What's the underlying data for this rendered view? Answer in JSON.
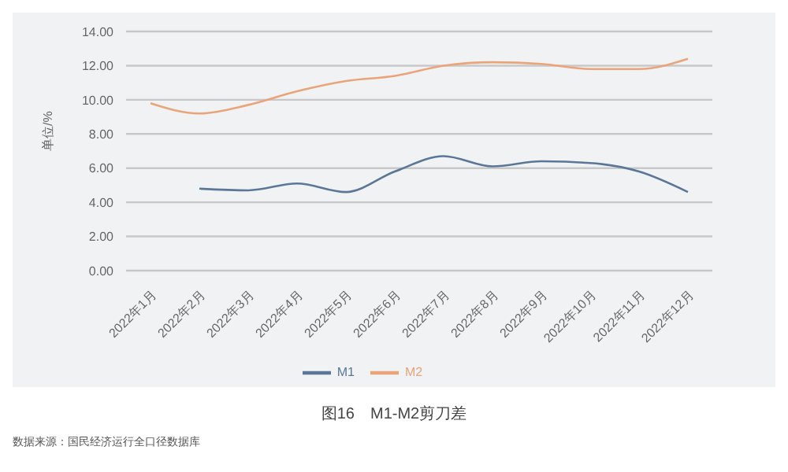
{
  "chart_data": {
    "type": "line",
    "title": "图16　M1-M2剪刀差",
    "ylabel": "单位/%",
    "categories": [
      "2022年1月",
      "2022年2月",
      "2022年3月",
      "2022年4月",
      "2022年5月",
      "2022年6月",
      "2022年7月",
      "2022年8月",
      "2022年9月",
      "2022年10月",
      "2022年11月",
      "2022年12月"
    ],
    "series": [
      {
        "name": "M1",
        "color": "#5a7797",
        "values": [
          null,
          4.8,
          4.7,
          5.1,
          4.6,
          5.8,
          6.7,
          6.1,
          6.4,
          6.3,
          5.8,
          4.6
        ]
      },
      {
        "name": "M2",
        "color": "#e9a47a",
        "values": [
          9.8,
          9.2,
          9.7,
          10.5,
          11.1,
          11.4,
          12.0,
          12.2,
          12.1,
          11.8,
          11.8,
          12.4
        ]
      }
    ],
    "ylim": [
      0,
      14
    ],
    "yticks": [
      {
        "value": 0,
        "label": "0.00"
      },
      {
        "value": 2,
        "label": "2.00"
      },
      {
        "value": 4,
        "label": "4.00"
      },
      {
        "value": 6,
        "label": "6.00"
      },
      {
        "value": 8,
        "label": "8.00"
      },
      {
        "value": 10,
        "label": "10.00"
      },
      {
        "value": 12,
        "label": "12.00"
      },
      {
        "value": 14,
        "label": "14.00"
      }
    ],
    "grid": "y",
    "legend": "bottom",
    "marker": "none",
    "line_style": "solid",
    "annotations": [
      "数据来源：国民经济运行全口径数据库"
    ]
  }
}
